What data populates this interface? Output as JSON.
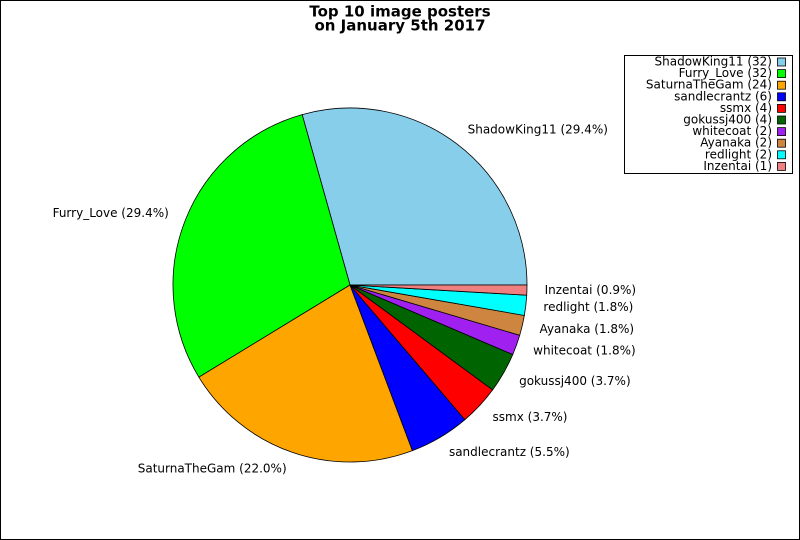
{
  "chart_data": {
    "type": "pie",
    "title": "Top 10 image posters",
    "subtitle": "on January 5th 2017",
    "categories": [
      "ShadowKing11",
      "Furry_Love",
      "SaturnaTheGam",
      "sandlecrantz",
      "ssmx",
      "gokussj400",
      "whitecoat",
      "Ayanaka",
      "redlight",
      "Inzentai"
    ],
    "values": [
      32,
      32,
      24,
      6,
      4,
      4,
      2,
      2,
      2,
      1
    ],
    "value_labels": [
      "ShadowKing11 (29.4%)",
      "Furry_Love (29.4%)",
      "SaturnaTheGam (22.0%)",
      "sandlecrantz (5.5%)",
      "ssmx (3.7%)",
      "gokussj400 (3.7%)",
      "whitecoat (1.8%)",
      "Ayanaka (1.8%)",
      "redlight (1.8%)",
      "Inzentai (0.9%)"
    ],
    "legend_labels": [
      "ShadowKing11 (32)",
      "Furry_Love (32)",
      "SaturnaTheGam (24)",
      "sandlecrantz (6)",
      "ssmx (4)",
      "gokussj400 (4)",
      "whitecoat (2)",
      "Ayanaka (2)",
      "redlight (2)",
      "Inzentai (1)"
    ],
    "colors": [
      "#87ceeb",
      "#00ff00",
      "#ffa500",
      "#0000ff",
      "#ff0000",
      "#006400",
      "#a020f0",
      "#cd853f",
      "#00ffff",
      "#f08080"
    ],
    "legend": "upper right"
  }
}
